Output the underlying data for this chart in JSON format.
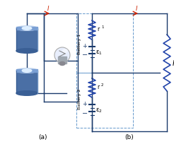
{
  "bg_color": "#ffffff",
  "wire_color": "#1a3a6b",
  "arrow_color": "#cc2200",
  "resistor_color": "#2244aa",
  "battery_color": "#1a3a6b",
  "dashed_color": "#6699cc",
  "bat_body_color": "#4a6fa5",
  "bat_top_color": "#c0d4ee",
  "bat_inner_color": "#ddeeff",
  "bat_bot_color": "#3a5f95",
  "bat_rim_color": "#7a9fd4",
  "label_I": "I",
  "label_R": "R",
  "label_r1": "r",
  "label_r2": "r",
  "label_e1": "ε",
  "label_e2": "ε",
  "label_bat1": "Battery 1",
  "label_bat2": "Battery 2",
  "label_a": "(a)",
  "label_b": "(b)"
}
